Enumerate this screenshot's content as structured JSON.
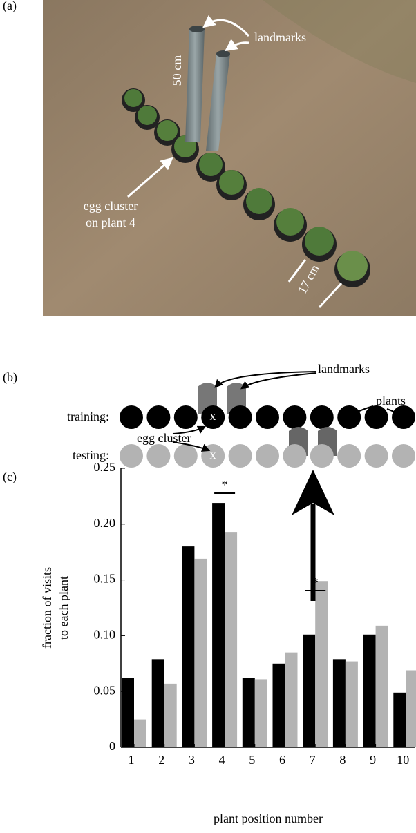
{
  "panel_a": {
    "label": "(a)",
    "landmarks": "landmarks",
    "height": "50 cm",
    "egg_cluster": [
      "egg cluster",
      "on plant 4"
    ],
    "spacing": "17 cm"
  },
  "panel_b": {
    "label": "(b)",
    "landmarks": "landmarks",
    "plants": "plants",
    "training": "training:",
    "testing": "testing:",
    "egg_cluster": "egg cluster",
    "training_marker": "x",
    "testing_marker": "x"
  },
  "panel_c": {
    "label": "(c)"
  },
  "chart_data": {
    "type": "bar",
    "ylabel": [
      "fraction of visits",
      "to each plant"
    ],
    "xlabel": "plant position number",
    "categories": [
      "1",
      "2",
      "3",
      "4",
      "5",
      "6",
      "7",
      "8",
      "9",
      "10"
    ],
    "series": [
      {
        "color": "#000000",
        "values": [
          0.062,
          0.079,
          0.18,
          0.219,
          0.062,
          0.075,
          0.101,
          0.079,
          0.101,
          0.049
        ]
      },
      {
        "color": "#b3b3b3",
        "values": [
          0.025,
          0.057,
          0.169,
          0.193,
          0.061,
          0.085,
          0.149,
          0.077,
          0.109,
          0.069
        ]
      }
    ],
    "ylim": [
      0,
      0.25
    ],
    "yticks": [
      0,
      0.05,
      {
        "value": 0.1,
        "label": "0.10"
      },
      0.15,
      {
        "value": 0.2,
        "label": "0.20"
      },
      0.25
    ],
    "annotations": [
      "*",
      "*"
    ]
  }
}
